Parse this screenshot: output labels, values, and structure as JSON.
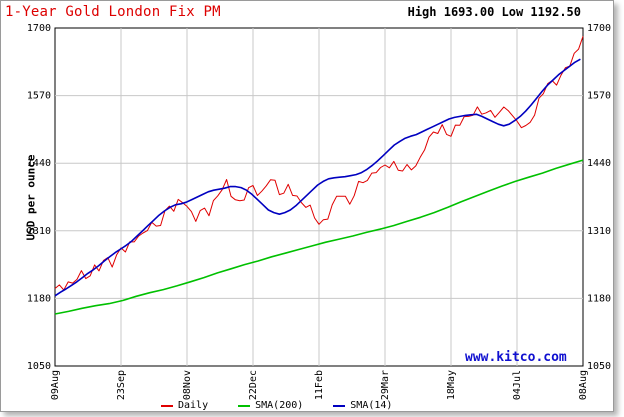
{
  "chart_data": {
    "type": "line",
    "title": "1-Year Gold London Fix PM",
    "high_low": "High 1693.00 Low 1192.50",
    "ylabel": "USD per ounce",
    "watermark": "www.kitco.com",
    "xlabel": "",
    "ylim": [
      1050,
      1700
    ],
    "y_ticks": [
      1050,
      1180,
      1310,
      1440,
      1570,
      1700
    ],
    "x_ticks": [
      "09Aug",
      "23Sep",
      "08Nov",
      "22Dec",
      "11Feb",
      "29Mar",
      "18May",
      "04Jul",
      "08Aug"
    ],
    "grid": true,
    "legend_position": "bottom",
    "colors": {
      "daily": "#e00000",
      "sma200": "#00c000",
      "sma14": "#0000c0",
      "title": "#dd0000"
    },
    "series": [
      {
        "name": "Daily",
        "values": [
          1195,
          1200,
          1205,
          1212,
          1208,
          1218,
          1225,
          1222,
          1230,
          1240,
          1235,
          1248,
          1255,
          1250,
          1262,
          1275,
          1270,
          1282,
          1295,
          1305,
          1300,
          1312,
          1322,
          1318,
          1330,
          1345,
          1355,
          1348,
          1365,
          1372,
          1360,
          1340,
          1330,
          1345,
          1355,
          1348,
          1362,
          1375,
          1390,
          1405,
          1385,
          1370,
          1360,
          1372,
          1390,
          1400,
          1385,
          1378,
          1395,
          1410,
          1405,
          1388,
          1380,
          1392,
          1382,
          1375,
          1368,
          1360,
          1350,
          1335,
          1325,
          1330,
          1340,
          1355,
          1370,
          1382,
          1375,
          1365,
          1380,
          1395,
          1405,
          1410,
          1420,
          1428,
          1425,
          1432,
          1438,
          1442,
          1430,
          1425,
          1428,
          1432,
          1438,
          1450,
          1470,
          1482,
          1498,
          1505,
          1512,
          1498,
          1490,
          1505,
          1520,
          1532,
          1528,
          1535,
          1540,
          1535,
          1545,
          1538,
          1530,
          1535,
          1542,
          1550,
          1532,
          1518,
          1510,
          1505,
          1522,
          1540,
          1560,
          1575,
          1590,
          1595,
          1600,
          1608,
          1620,
          1628,
          1645,
          1665,
          1690
        ],
        "smooth": false
      },
      {
        "name": "SMA(14)",
        "values": [
          1185,
          1192,
          1198,
          1205,
          1212,
          1220,
          1228,
          1235,
          1243,
          1252,
          1260,
          1268,
          1275,
          1282,
          1290,
          1300,
          1310,
          1320,
          1330,
          1340,
          1348,
          1355,
          1360,
          1362,
          1365,
          1370,
          1375,
          1380,
          1385,
          1388,
          1390,
          1392,
          1395,
          1395,
          1393,
          1388,
          1380,
          1370,
          1360,
          1350,
          1345,
          1342,
          1345,
          1350,
          1358,
          1368,
          1378,
          1388,
          1398,
          1405,
          1410,
          1412,
          1413,
          1414,
          1416,
          1418,
          1422,
          1428,
          1436,
          1445,
          1455,
          1465,
          1475,
          1482,
          1488,
          1492,
          1495,
          1500,
          1505,
          1510,
          1515,
          1520,
          1525,
          1528,
          1530,
          1532,
          1533,
          1534,
          1530,
          1525,
          1520,
          1515,
          1512,
          1515,
          1522,
          1530,
          1540,
          1552,
          1565,
          1578,
          1590,
          1600,
          1610,
          1618,
          1626,
          1634,
          1640
        ],
        "smooth": true
      },
      {
        "name": "SMA(200)",
        "values": [
          1150,
          1155,
          1161,
          1166,
          1170,
          1176,
          1184,
          1191,
          1197,
          1204,
          1212,
          1220,
          1229,
          1237,
          1245,
          1252,
          1260,
          1267,
          1274,
          1281,
          1288,
          1294,
          1300,
          1307,
          1313,
          1320,
          1328,
          1336,
          1345,
          1355,
          1366,
          1376,
          1386,
          1396,
          1405,
          1413,
          1421,
          1430,
          1438,
          1446
        ],
        "smooth": true
      }
    ]
  }
}
